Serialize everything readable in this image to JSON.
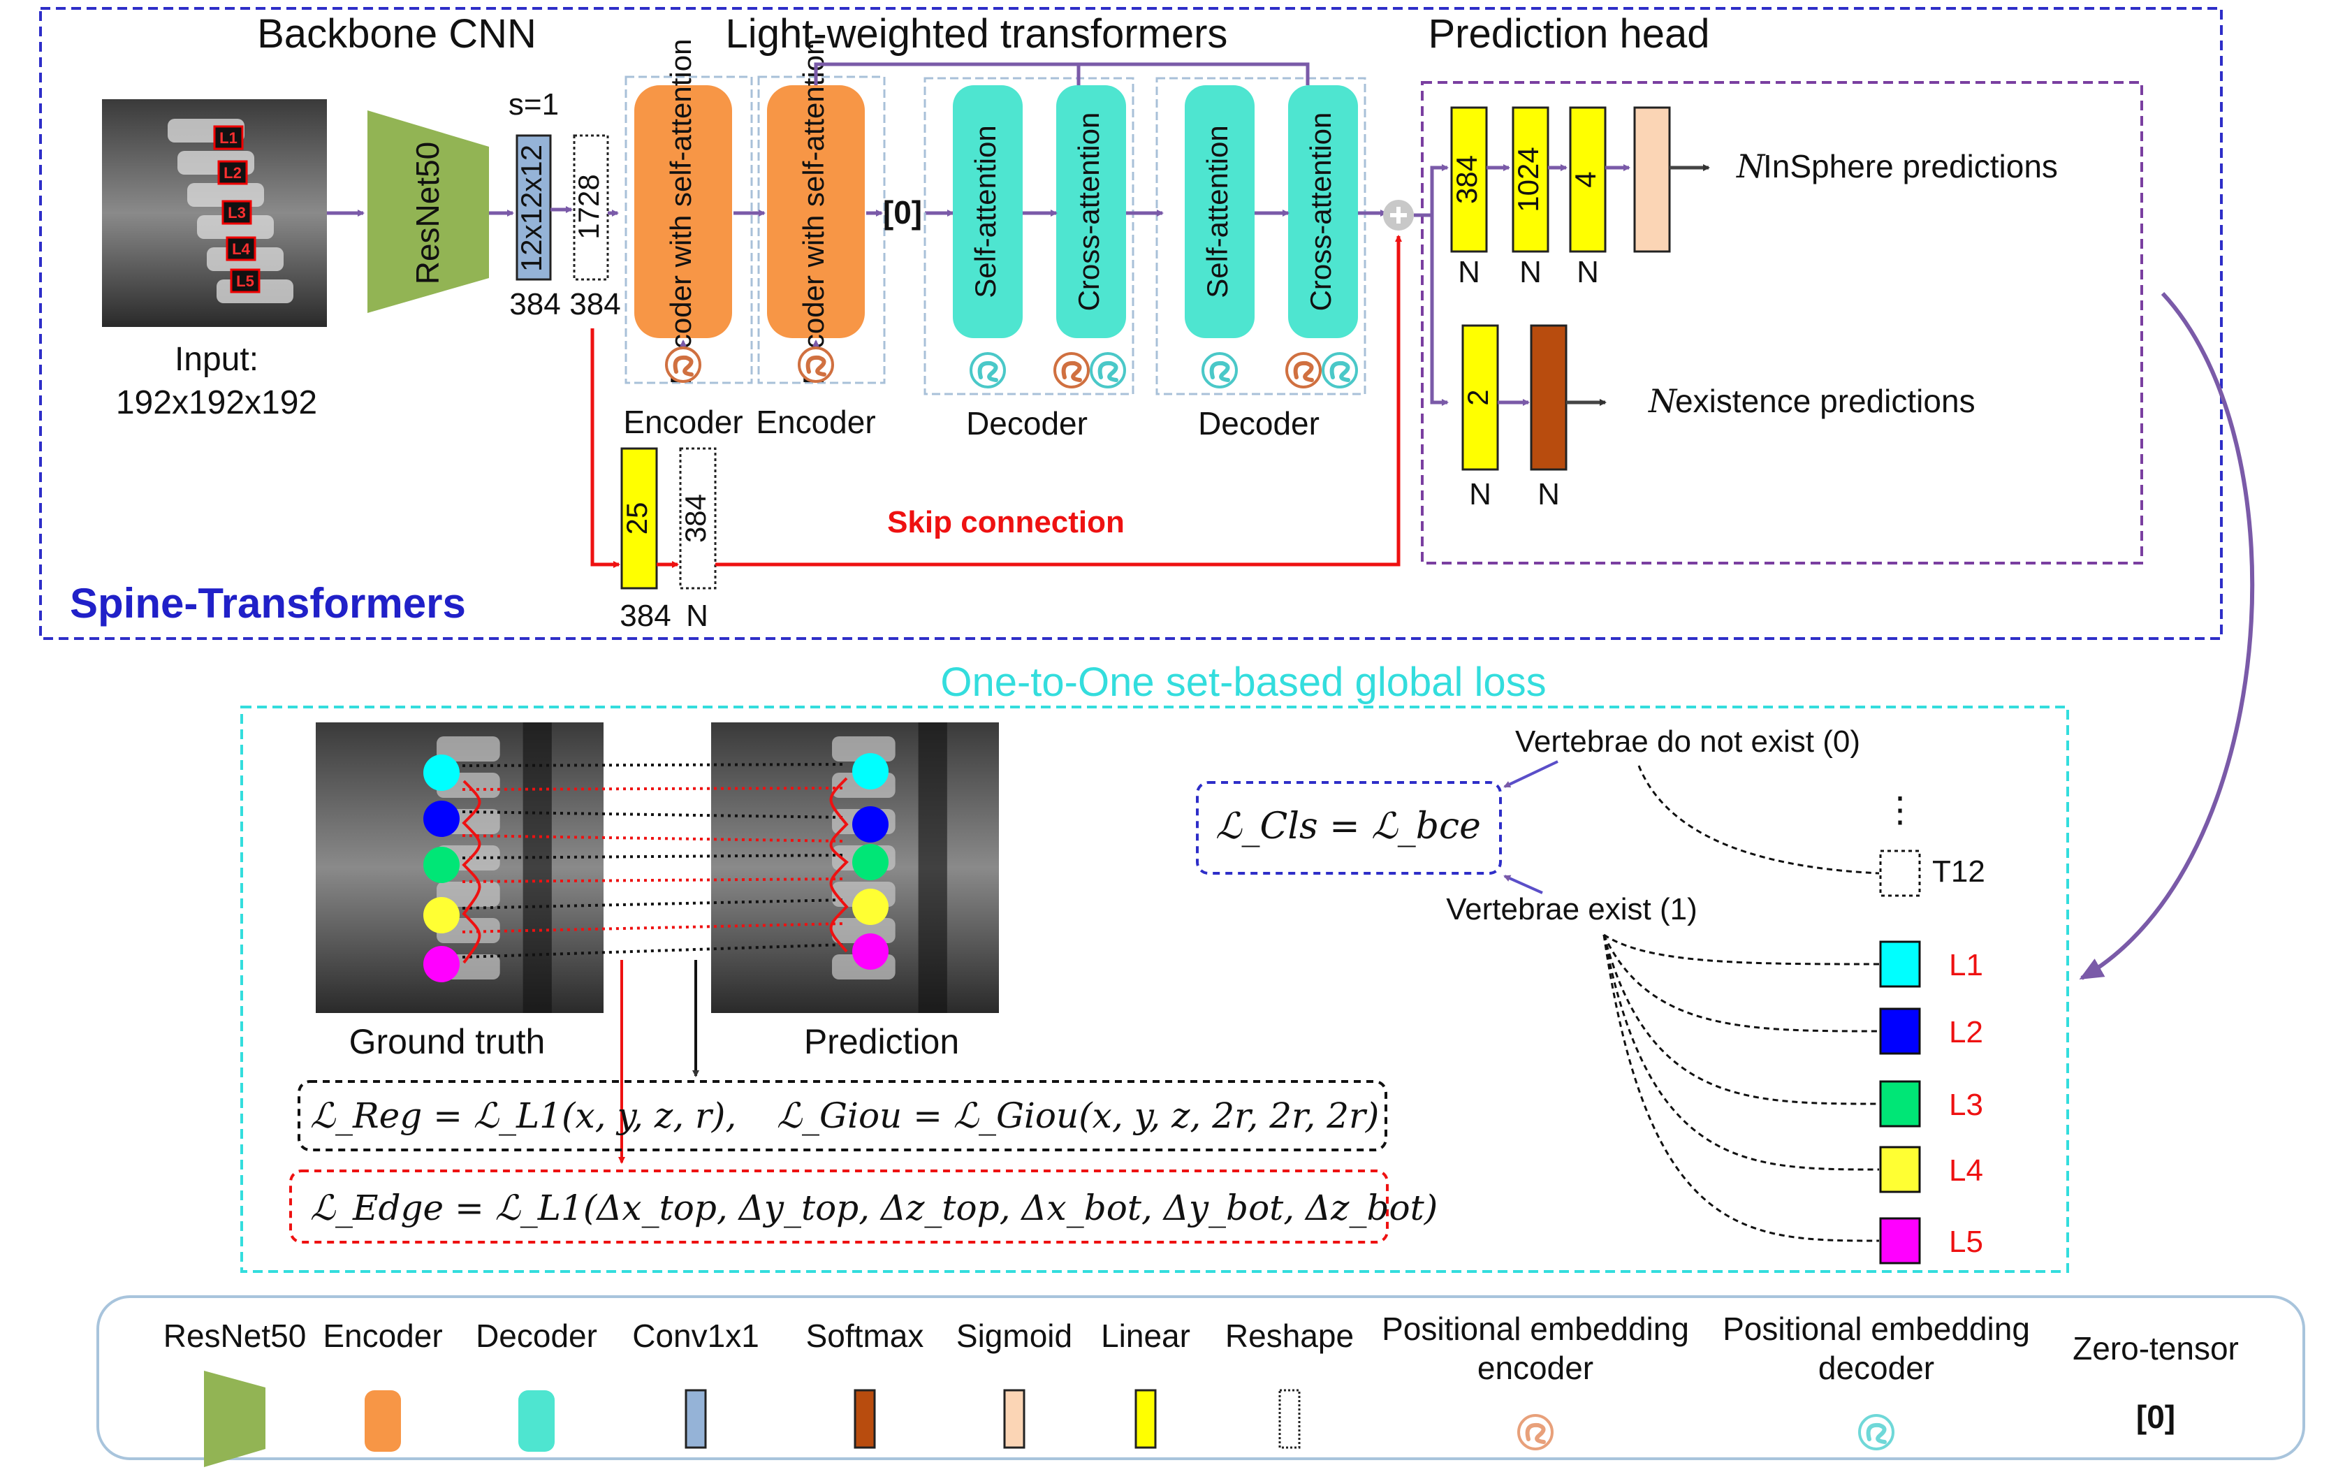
{
  "sections": {
    "backbone_title": "Backbone CNN",
    "transformers_title": "Light-weighted transformers",
    "head_title": "Prediction head",
    "network_name": "Spine-Transformers",
    "loss_title": "One-to-One set-based global loss"
  },
  "input": {
    "label_line1": "Input:",
    "label_line2": "192x192x192",
    "vertebra_tags": [
      "L1",
      "L2",
      "L3",
      "L4",
      "L5"
    ]
  },
  "backbone": {
    "block": "ResNet50"
  },
  "features": {
    "stride": "s=1",
    "conv_label": "12x12x12",
    "conv_size": "384",
    "reshape_label": "1728",
    "reshape_size": "384"
  },
  "transformers": {
    "encoder_block": "Encoder with self-attention",
    "encoder_captions": [
      "Encoder",
      "Encoder"
    ],
    "zero_tensor": "[0]",
    "self_attention": "Self-attention",
    "cross_attention": "Cross-attention",
    "decoder_captions": [
      "Decoder",
      "Decoder"
    ]
  },
  "skip": {
    "linear_label": "25",
    "reshape_label": "384",
    "size_left": "384",
    "size_right": "N",
    "caption": "Skip connection"
  },
  "head": {
    "linear_labels": [
      "384",
      "1024",
      "4"
    ],
    "n_labels": [
      "N",
      "N",
      "N"
    ],
    "insphere_n": "N",
    "insphere_text": "InSphere predictions",
    "exist_linear": "2",
    "exist_n_labels": [
      "N",
      "N"
    ],
    "exist_n": "N",
    "exist_text": "existence predictions"
  },
  "loss": {
    "gt_caption": "Ground truth",
    "pred_caption": "Prediction",
    "reg_formula": "ℒ_Reg = ℒ_L1(x, y, z, r),",
    "giou_formula": "ℒ_Giou = ℒ_Giou(x, y, z, 2r, 2r, 2r)",
    "edge_formula": "ℒ_Edge = ℒ_L1(Δx_top, Δy_top, Δz_top, Δx_bot, Δy_bot, Δz_bot)",
    "cls_formula": "ℒ_Cls = ℒ_bce",
    "not_exist": "Vertebrae do not exist (0)",
    "exist": "Vertebrae exist (1)",
    "ellipsis": "⋮",
    "t12": "T12",
    "levels": [
      {
        "name": "L1",
        "color": "#00ffff"
      },
      {
        "name": "L2",
        "color": "#0000ff"
      },
      {
        "name": "L3",
        "color": "#00e676"
      },
      {
        "name": "L4",
        "color": "#ffff33"
      },
      {
        "name": "L5",
        "color": "#ff00ff"
      }
    ]
  },
  "legend": [
    {
      "label": "ResNet50",
      "line2": "",
      "icon": "trapezoid-icon",
      "color": "#92b454"
    },
    {
      "label": "Encoder",
      "line2": "",
      "icon": "rounded-rect-icon",
      "color": "#f79646"
    },
    {
      "label": "Decoder",
      "line2": "",
      "icon": "rounded-rect-icon",
      "color": "#4ee5d0"
    },
    {
      "label": "Conv1x1",
      "line2": "",
      "icon": "rect-icon",
      "color": "#95b3d7"
    },
    {
      "label": "Softmax",
      "line2": "",
      "icon": "rect-icon",
      "color": "#b84c0e"
    },
    {
      "label": "Sigmoid",
      "line2": "",
      "icon": "rect-icon",
      "color": "#fbd5b5"
    },
    {
      "label": "Linear",
      "line2": "",
      "icon": "rect-icon",
      "color": "#ffff00"
    },
    {
      "label": "Reshape",
      "line2": "",
      "icon": "dotted-rect-icon",
      "color": "#ffffff"
    },
    {
      "label": "Positional embedding",
      "line2": "encoder",
      "icon": "swirl-icon",
      "color": "#e8a07a"
    },
    {
      "label": "Positional embedding",
      "line2": "decoder",
      "icon": "swirl-icon",
      "color": "#6fd8d8"
    },
    {
      "label": "Zero-tensor",
      "line2": "",
      "icon": "zero-tensor-icon",
      "value": "[0]"
    }
  ],
  "colors": {
    "network_border": "#2e2ec8",
    "head_border": "#7a3fa0",
    "loss_border": "#33dddd",
    "arrow": "#7a5aa8",
    "skip": "#ee1111",
    "level_text": "#ee1111"
  }
}
